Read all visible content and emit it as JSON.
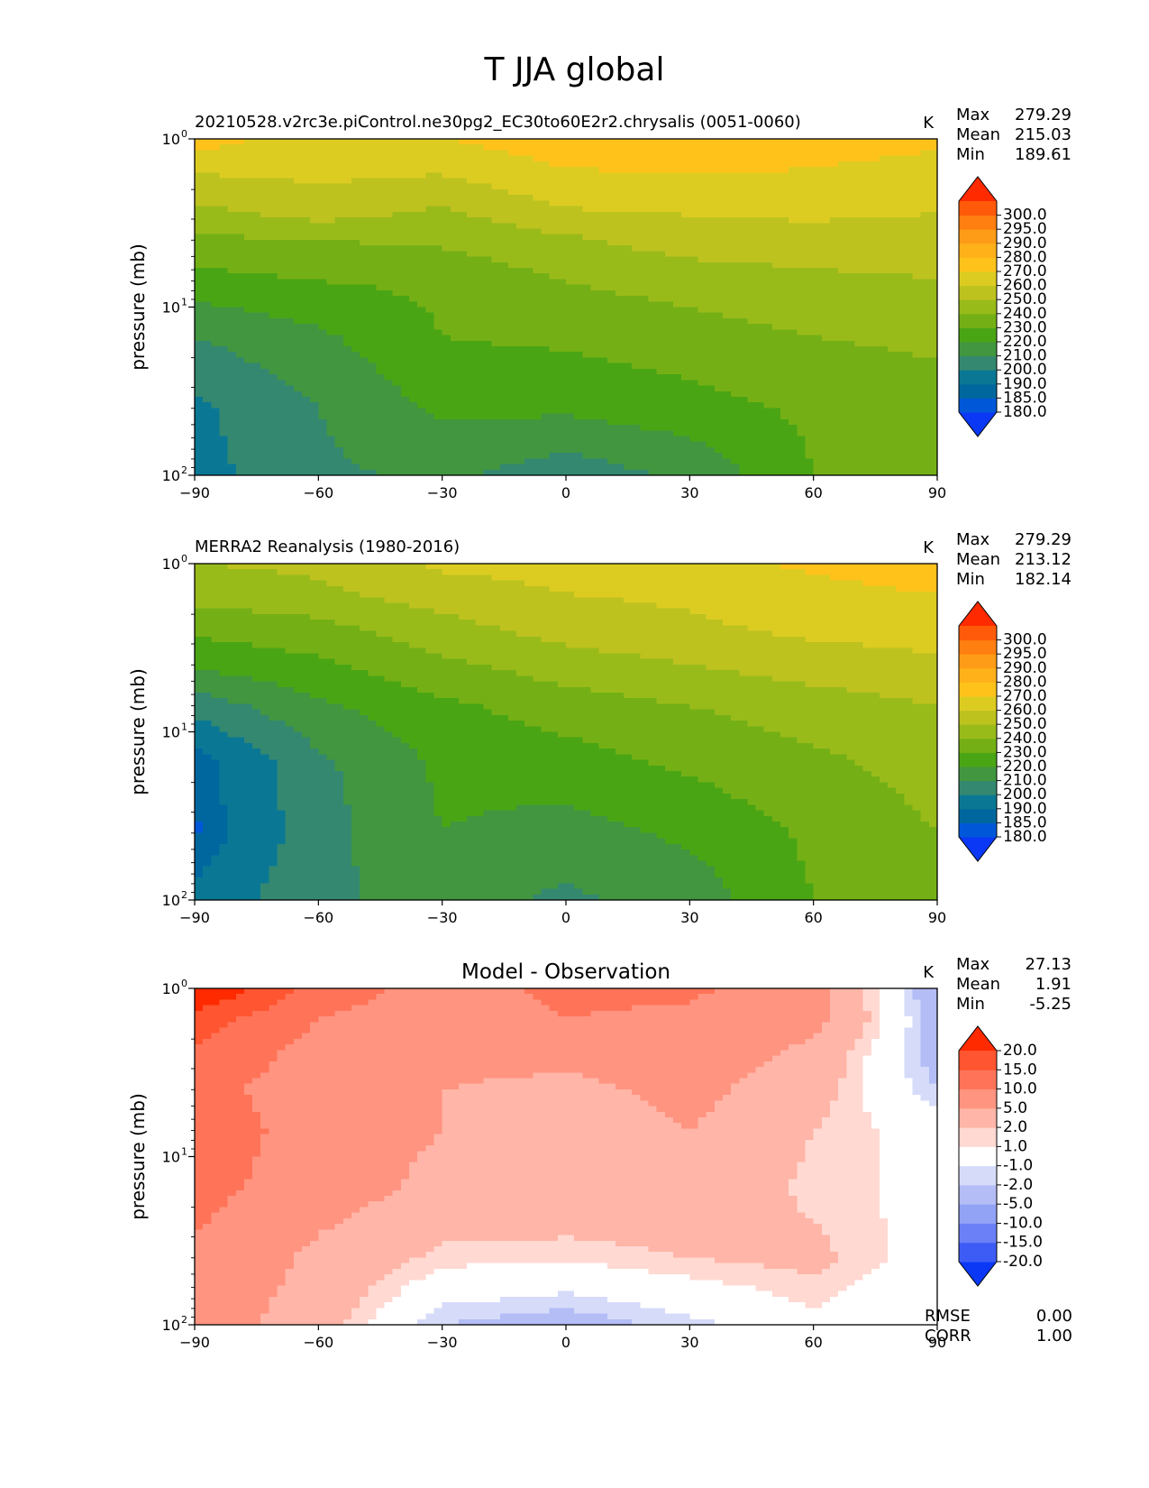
{
  "figure": {
    "title": "T JJA global",
    "rmse_label": "RMSE",
    "rmse_value": "0.00",
    "corr_label": "CORR",
    "corr_value": "1.00"
  },
  "chart_data": [
    {
      "type": "heatmap",
      "title": "20210528.v2rc3e.piControl.ne30pg2_EC30to60E2r2.chrysalis (0051-0060)",
      "units": "K",
      "ylabel": "pressure (mb)",
      "yscale": "log",
      "ylim": [
        100,
        1
      ],
      "xlim": [
        -90,
        90
      ],
      "x_ticks": [
        "−90",
        "−60",
        "−30",
        "0",
        "30",
        "60",
        "90"
      ],
      "y_ticks": [
        {
          "base": "10",
          "exp": "0"
        },
        {
          "base": "10",
          "exp": "1"
        },
        {
          "base": "10",
          "exp": "2"
        }
      ],
      "stats": {
        "max_label": "Max",
        "max": "279.29",
        "mean_label": "Mean",
        "mean": "215.03",
        "min_label": "Min",
        "min": "189.61"
      },
      "colorbar": {
        "levels": [
          "180.0",
          "185.0",
          "190.0",
          "200.0",
          "210.0",
          "220.0",
          "230.0",
          "240.0",
          "250.0",
          "260.0",
          "270.0",
          "280.0",
          "290.0",
          "295.0",
          "300.0"
        ],
        "colors": [
          "#0a38f5",
          "#0057d8",
          "#00679e",
          "#0a7894",
          "#348870",
          "#41963f",
          "#4aa514",
          "#74b015",
          "#99bb1a",
          "#bdc21f",
          "#dccc21",
          "#ffc21b",
          "#ffb119",
          "#ff9c17",
          "#ff7f10",
          "#ff5a0a",
          "#ff2a00"
        ]
      },
      "x": [
        -90,
        -60,
        -30,
        0,
        30,
        60,
        90
      ],
      "y": [
        1,
        1.5,
        2.5,
        4,
        7,
        15,
        40,
        100
      ],
      "z": [
        [
          276,
          262,
          270,
          276,
          276,
          275,
          273
        ],
        [
          262,
          262,
          262,
          270,
          271,
          270,
          266
        ],
        [
          249,
          258,
          250,
          261,
          262,
          264,
          262
        ],
        [
          238,
          240,
          242,
          248,
          255,
          255,
          253
        ],
        [
          226,
          230,
          232,
          240,
          244,
          248,
          250
        ],
        [
          210,
          218,
          230,
          232,
          236,
          240,
          242
        ],
        [
          198,
          210,
          222,
          222,
          226,
          232,
          236
        ],
        [
          196,
          208,
          212,
          204,
          212,
          230,
          234
        ]
      ]
    },
    {
      "type": "heatmap",
      "title": "MERRA2 Reanalysis (1980-2016)",
      "units": "K",
      "ylabel": "pressure (mb)",
      "yscale": "log",
      "ylim": [
        100,
        1
      ],
      "xlim": [
        -90,
        90
      ],
      "x_ticks": [
        "−90",
        "−60",
        "−30",
        "0",
        "30",
        "60",
        "90"
      ],
      "y_ticks": [
        {
          "base": "10",
          "exp": "0"
        },
        {
          "base": "10",
          "exp": "1"
        },
        {
          "base": "10",
          "exp": "2"
        }
      ],
      "stats": {
        "max_label": "Max",
        "max": "279.29",
        "mean_label": "Mean",
        "mean": "213.12",
        "min_label": "Min",
        "min": "182.14"
      },
      "colorbar": {
        "levels": [
          "180.0",
          "185.0",
          "190.0",
          "200.0",
          "210.0",
          "220.0",
          "230.0",
          "240.0",
          "250.0",
          "260.0",
          "270.0",
          "280.0",
          "290.0",
          "295.0",
          "300.0"
        ],
        "colors": [
          "#0a38f5",
          "#0057d8",
          "#00679e",
          "#0a7894",
          "#348870",
          "#41963f",
          "#4aa514",
          "#74b015",
          "#99bb1a",
          "#bdc21f",
          "#dccc21",
          "#ffc21b",
          "#ffb119",
          "#ff9c17",
          "#ff7f10",
          "#ff5a0a",
          "#ff2a00"
        ]
      },
      "x": [
        -90,
        -60,
        -30,
        0,
        30,
        60,
        90
      ],
      "y": [
        1,
        1.5,
        2.5,
        4,
        7,
        15,
        40,
        100
      ],
      "z": [
        [
          250,
          252,
          262,
          264,
          266,
          272,
          279
        ],
        [
          244,
          248,
          255,
          260,
          262,
          266,
          270
        ],
        [
          232,
          236,
          246,
          254,
          258,
          262,
          264
        ],
        [
          222,
          228,
          238,
          245,
          250,
          255,
          258
        ],
        [
          204,
          218,
          228,
          235,
          240,
          245,
          250
        ],
        [
          186,
          208,
          222,
          226,
          232,
          238,
          244
        ],
        [
          184,
          206,
          220,
          216,
          222,
          232,
          240
        ],
        [
          192,
          208,
          214,
          208,
          214,
          230,
          236
        ]
      ]
    },
    {
      "type": "heatmap",
      "title": "Model - Observation",
      "units": "K",
      "ylabel": "pressure (mb)",
      "yscale": "log",
      "ylim": [
        100,
        1
      ],
      "xlim": [
        -90,
        90
      ],
      "x_ticks": [
        "−90",
        "−60",
        "−30",
        "0",
        "30",
        "60",
        "90"
      ],
      "y_ticks": [
        {
          "base": "10",
          "exp": "0"
        },
        {
          "base": "10",
          "exp": "1"
        },
        {
          "base": "10",
          "exp": "2"
        }
      ],
      "stats": {
        "max_label": "Max",
        "max": "27.13",
        "mean_label": "Mean",
        "mean": "1.91",
        "min_label": "Min",
        "min": "-5.25"
      },
      "colorbar": {
        "levels": [
          "-20.0",
          "-15.0",
          "-10.0",
          "-5.0",
          "-2.0",
          "-1.0",
          "1.0",
          "2.0",
          "5.0",
          "10.0",
          "15.0",
          "20.0"
        ],
        "colors": [
          "#0a38f5",
          "#3d5cf6",
          "#6b80f7",
          "#92a2f5",
          "#b4bdf6",
          "#d6dbf9",
          "#ffffff",
          "#ffd9d2",
          "#ffb5a7",
          "#ff9480",
          "#ff7458",
          "#ff5530",
          "#ff2a00"
        ]
      },
      "x": [
        -90,
        -60,
        -30,
        0,
        30,
        60,
        90
      ],
      "y": [
        1,
        1.5,
        2.5,
        4,
        7,
        15,
        40,
        100
      ],
      "z": [
        [
          26,
          13,
          8,
          11,
          11,
          6,
          -4
        ],
        [
          18,
          10,
          7,
          10,
          9,
          6,
          -3
        ],
        [
          14,
          8,
          6,
          6,
          7,
          4,
          -3
        ],
        [
          12,
          7,
          5,
          4,
          6,
          3,
          -2
        ],
        [
          14,
          7,
          5,
          3,
          5,
          2,
          0
        ],
        [
          12,
          7,
          4,
          4,
          4,
          1.5,
          0.5
        ],
        [
          9,
          4,
          1.5,
          1.2,
          2,
          2.5,
          0
        ],
        [
          7,
          3,
          -2,
          -3,
          -1.5,
          0.5,
          -1
        ]
      ]
    }
  ]
}
